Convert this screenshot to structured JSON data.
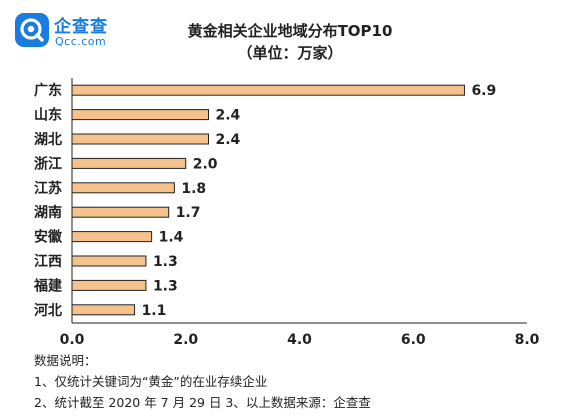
{
  "brand": {
    "name": "企查查",
    "domain": "Qcc.com",
    "color": "#1a7ce0"
  },
  "chart_data": {
    "type": "bar",
    "orientation": "horizontal",
    "title": "黄金相关企业地域分布TOP10",
    "subtitle": "（单位：万家）",
    "categories": [
      "广东",
      "山东",
      "湖北",
      "浙江",
      "江苏",
      "湖南",
      "安徽",
      "江西",
      "福建",
      "河北"
    ],
    "values": [
      6.9,
      2.4,
      2.4,
      2.0,
      1.8,
      1.7,
      1.4,
      1.3,
      1.3,
      1.1
    ],
    "value_labels": [
      "6.9",
      "2.4",
      "2.4",
      "2.0",
      "1.8",
      "1.7",
      "1.4",
      "1.3",
      "1.3",
      "1.1"
    ],
    "xlim": [
      0,
      8
    ],
    "xticks": [
      0,
      2,
      4,
      6,
      8
    ],
    "xtick_labels": [
      "0.0",
      "2.0",
      "4.0",
      "6.0",
      "8.0"
    ],
    "grid": false,
    "bar_color": "#f5c28e",
    "bar_edge_color": "#222222"
  },
  "notes": {
    "heading": "数据说明：",
    "line1": "1、仅统计关键词为“黄金”的在业存续企业",
    "line2": "2、统计截至 2020 年 7 月 29 日   3、以上数据来源：企查查"
  }
}
